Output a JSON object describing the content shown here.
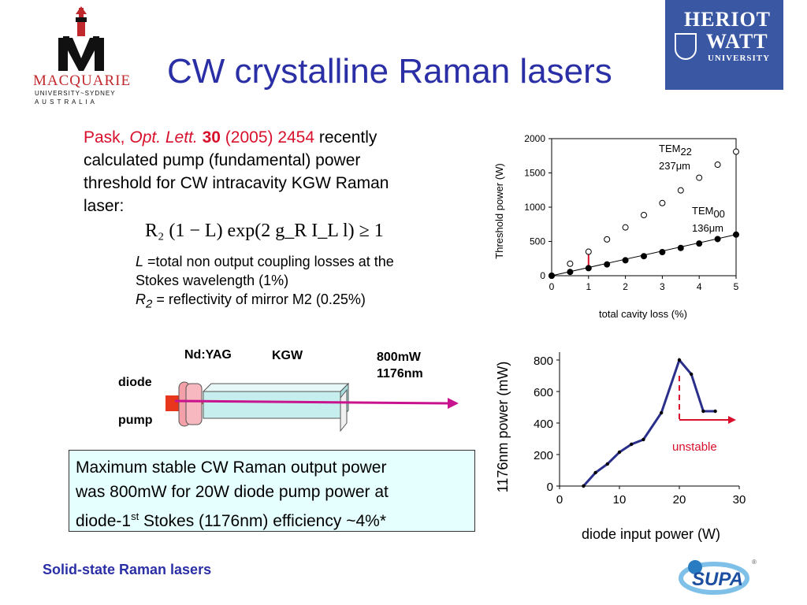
{
  "slide": {
    "title": "CW crystalline Raman lasers",
    "footer": "Solid-state Raman lasers"
  },
  "logos": {
    "macquarie": {
      "line1": "MACQUARIE",
      "line2": "UNIVERSITY~SYDNEY",
      "line3": "A U S T R A L I A"
    },
    "heriot_watt": {
      "line1": "HERIOT",
      "line2": "WATT",
      "line3": "UNIVERSITY"
    },
    "supa": {
      "text": "SUPA"
    }
  },
  "body": {
    "ref_author": "Pask, ",
    "ref_journal": "Opt. Lett.",
    "ref_volume": " 30",
    "ref_rest": " (2005) 2454",
    "text_1": " recently",
    "text_2": "calculated pump (fundamental) power",
    "text_3": "threshold for CW intracavity KGW Raman",
    "text_4": "laser:",
    "equation": "R₂ (1 − L) exp(2 g_R I_L l) ≥ 1",
    "def_L_sym": "L",
    "def_L": " =total non output coupling losses at the",
    "def_L2": "Stokes wavelength (1%)",
    "def_R_sym": "R",
    "def_R_sub": "2",
    "def_R": " = reflectivity of mirror M2 (0.25%)"
  },
  "diagram": {
    "crystal1": "Nd:YAG",
    "crystal2": "KGW",
    "output1": "800mW",
    "output2": "1176nm",
    "pump1": "diode",
    "pump2": "pump"
  },
  "note": {
    "line1": "Maximum stable CW Raman output power",
    "line2": "was 800mW for 20W diode pump power at",
    "line3_a": "diode-1",
    "line3_sup": "st",
    "line3_b": " Stokes (1176nm) efficiency ~4%*"
  },
  "chart_data": [
    {
      "type": "scatter",
      "xlabel": "total cavity loss (%)",
      "ylabel": "Threshold power (W)",
      "xlim": [
        0,
        5
      ],
      "ylim": [
        0,
        2000
      ],
      "x_ticks": [
        "0",
        "1",
        "2",
        "3",
        "4",
        "5"
      ],
      "y_ticks": [
        "0",
        "500",
        "1000",
        "1500",
        "2000"
      ],
      "series": [
        {
          "name": "TEM22 237μm",
          "marker": "open",
          "x": [
            0,
            0.5,
            1,
            1.5,
            2,
            2.5,
            3,
            3.5,
            4,
            4.5,
            5
          ],
          "values": [
            0,
            175,
            350,
            530,
            705,
            885,
            1060,
            1245,
            1430,
            1620,
            1810
          ]
        },
        {
          "name": "TEM00 136μm",
          "marker": "filled",
          "x": [
            0,
            0.5,
            1,
            1.5,
            2,
            2.5,
            3,
            3.5,
            4,
            4.5,
            5
          ],
          "values": [
            0,
            55,
            110,
            165,
            225,
            285,
            345,
            405,
            470,
            535,
            600
          ]
        }
      ],
      "annotations": [
        "TEM",
        "22",
        "237μm",
        "TEM",
        "00",
        "136μm"
      ]
    },
    {
      "type": "line",
      "xlabel": "diode input power (W)",
      "ylabel": "1176nm power (mW)",
      "xlim": [
        0,
        30
      ],
      "ylim": [
        0,
        800
      ],
      "x_ticks": [
        "0",
        "10",
        "20",
        "30"
      ],
      "y_ticks": [
        "0",
        "200",
        "400",
        "600",
        "800"
      ],
      "series": [
        {
          "x": [
            4,
            6,
            8,
            10,
            12,
            14,
            17,
            20,
            22,
            24,
            26
          ],
          "values": [
            0,
            85,
            140,
            215,
            265,
            295,
            465,
            800,
            710,
            475,
            475
          ]
        }
      ],
      "annotation": "unstable",
      "colors": {
        "line": "#2a2f8c",
        "annotation": "#d8102c"
      }
    }
  ],
  "colors": {
    "title": "#2b2fa6",
    "accent_red": "#d8102c",
    "heriot_bg": "#3a57a4",
    "laser_line": "#c8128e",
    "crystal": "#c6eeee",
    "note_bg": "#e5ffff"
  }
}
